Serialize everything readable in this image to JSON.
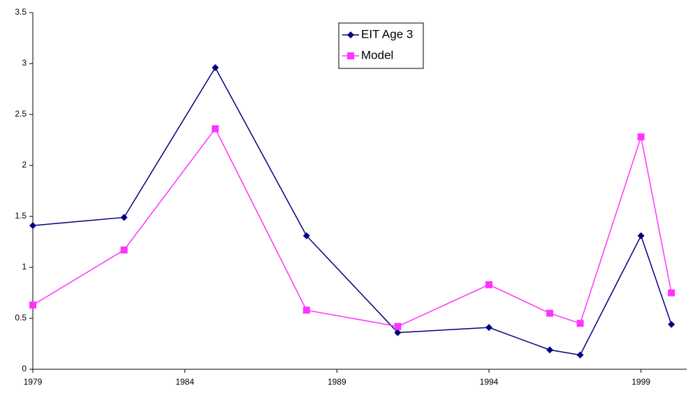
{
  "chart_data": {
    "type": "line",
    "x": [
      1979,
      1982,
      1985,
      1988,
      1991,
      1994,
      1996,
      1997,
      1999,
      2000
    ],
    "series": [
      {
        "name": "EIT Age 3",
        "color": "#000080",
        "marker": "diamond",
        "values": [
          1.41,
          1.49,
          2.96,
          1.31,
          0.36,
          0.41,
          0.19,
          0.14,
          1.31,
          0.44
        ]
      },
      {
        "name": "Model",
        "color": "#ff33ff",
        "marker": "square",
        "values": [
          0.63,
          1.17,
          2.36,
          0.58,
          0.42,
          0.83,
          0.55,
          0.45,
          2.28,
          0.75
        ]
      }
    ],
    "xlim": [
      1979,
      2000.5
    ],
    "xticks": [
      1979,
      1984,
      1989,
      1994,
      1999
    ],
    "ylim": [
      0,
      3.5
    ],
    "yticks": [
      0,
      0.5,
      1,
      1.5,
      2,
      2.5,
      3,
      3.5
    ],
    "grid": false,
    "legend": "top"
  }
}
